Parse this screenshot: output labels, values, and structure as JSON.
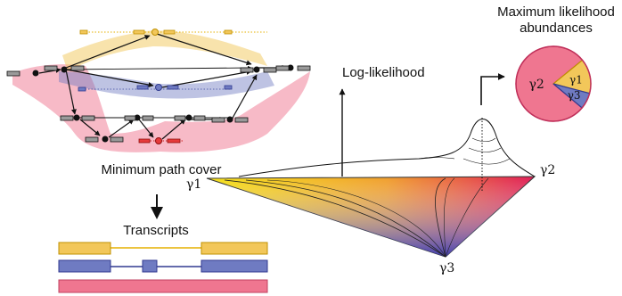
{
  "left_panel": {
    "path_cover_label": "Minimum path cover",
    "transcripts_label": "Transcripts"
  },
  "right_panel": {
    "y_axis_label": "Log-likelihood",
    "pie_title": "Maximum likelihood abundances",
    "vertex_labels": {
      "gamma1": "γ1",
      "gamma2": "γ2",
      "gamma3": "γ3"
    }
  },
  "colors": {
    "yellow": "#f2c75a",
    "blue": "#6f7bc2",
    "pink": "#ef7690",
    "red": "#e63b3b",
    "gray": "#6b6b6b"
  },
  "chart_data": {
    "type": "pie",
    "title": "Maximum likelihood abundances",
    "slices": [
      {
        "label": "γ2",
        "value": 0.78
      },
      {
        "label": "γ1",
        "value": 0.15
      },
      {
        "label": "γ3",
        "value": 0.07
      }
    ]
  }
}
